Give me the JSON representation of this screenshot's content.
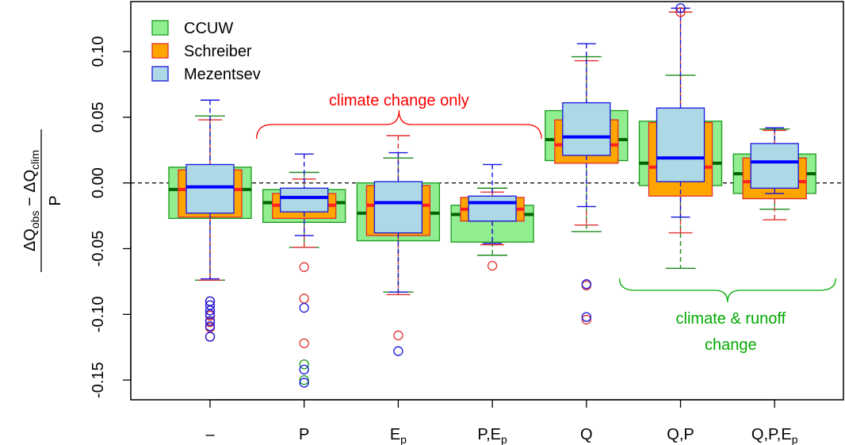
{
  "chart_data": {
    "type": "box",
    "title": "",
    "xlabel": "",
    "ylabel": {
      "numerator": "ΔQobs − ΔQclim",
      "numerator_parts": [
        "Δ",
        "Q",
        "obs",
        " − Δ",
        "Q",
        "clim"
      ],
      "denominator": "P"
    },
    "ylim": [
      -0.165,
      0.138
    ],
    "yticks": [
      -0.15,
      -0.1,
      -0.05,
      0.0,
      0.05,
      0.1
    ],
    "ytick_labels": [
      "-0.15",
      "-0.10",
      "-0.05",
      "0.00",
      "0.05",
      "0.10"
    ],
    "reference_line": 0.0,
    "categories": [
      {
        "label": "–",
        "base": "–",
        "sub": ""
      },
      {
        "label": "P",
        "base": "P",
        "sub": ""
      },
      {
        "label": "Ep",
        "base": "E",
        "sub": "p"
      },
      {
        "label": "P,Ep",
        "base": "P,E",
        "sub": "p"
      },
      {
        "label": "Q",
        "base": "Q",
        "sub": ""
      },
      {
        "label": "Q,P",
        "base": "Q,P",
        "sub": ""
      },
      {
        "label": "Q,P,Ep",
        "base": "Q,P,E",
        "sub": "p"
      }
    ],
    "series": [
      {
        "name": "CCUW",
        "fill": "#90EE90",
        "border": "#1a9a1a",
        "median_color": "#006400",
        "whisker_color": "#1a8a1a",
        "boxes": [
          {
            "q1": -0.027,
            "median": -0.005,
            "q3": 0.012,
            "lo": -0.074,
            "hi": 0.051
          },
          {
            "q1": -0.03,
            "median": -0.015,
            "q3": -0.005,
            "lo": -0.049,
            "hi": 0.008
          },
          {
            "q1": -0.044,
            "median": -0.023,
            "q3": 0.0,
            "lo": -0.083,
            "hi": 0.019
          },
          {
            "q1": -0.045,
            "median": -0.024,
            "q3": -0.017,
            "lo": -0.055,
            "hi": -0.004
          },
          {
            "q1": 0.017,
            "median": 0.033,
            "q3": 0.055,
            "lo": -0.037,
            "hi": 0.096
          },
          {
            "q1": -0.002,
            "median": 0.015,
            "q3": 0.047,
            "lo": -0.065,
            "hi": 0.082
          },
          {
            "q1": -0.008,
            "median": 0.007,
            "q3": 0.022,
            "lo": -0.02,
            "hi": 0.041
          }
        ],
        "outliers": [
          [],
          [
            -0.138,
            -0.15
          ],
          [],
          [],
          [],
          [],
          []
        ]
      },
      {
        "name": "Schreiber",
        "fill": "#FFA500",
        "border": "#e03030",
        "median_color": "#ff2020",
        "whisker_color": "#e03030",
        "boxes": [
          {
            "q1": -0.026,
            "median": -0.005,
            "q3": 0.01,
            "lo": -0.074,
            "hi": 0.048
          },
          {
            "q1": -0.027,
            "median": -0.017,
            "q3": -0.008,
            "lo": -0.049,
            "hi": 0.003
          },
          {
            "q1": -0.04,
            "median": -0.017,
            "q3": -0.002,
            "lo": -0.085,
            "hi": 0.036
          },
          {
            "q1": -0.029,
            "median": -0.02,
            "q3": -0.011,
            "lo": -0.047,
            "hi": -0.007
          },
          {
            "q1": 0.015,
            "median": 0.029,
            "q3": 0.048,
            "lo": -0.032,
            "hi": 0.093
          },
          {
            "q1": -0.01,
            "median": 0.012,
            "q3": 0.046,
            "lo": -0.038,
            "hi": 0.13
          },
          {
            "q1": -0.012,
            "median": 0.001,
            "q3": 0.019,
            "lo": -0.028,
            "hi": 0.04
          }
        ],
        "outliers": [
          [
            -0.09,
            -0.093,
            -0.097,
            -0.101,
            -0.106,
            -0.11,
            -0.117
          ],
          [
            -0.064,
            -0.088,
            -0.122
          ],
          [
            -0.116
          ],
          [
            -0.063
          ],
          [
            -0.078,
            -0.104
          ],
          [
            0.13
          ],
          []
        ]
      },
      {
        "name": "Mezentsev",
        "fill": "#ADD8E6",
        "border": "#1515e0",
        "median_color": "#0000ff",
        "whisker_color": "#1515e0",
        "boxes": [
          {
            "q1": -0.023,
            "median": -0.003,
            "q3": 0.014,
            "lo": -0.073,
            "hi": 0.063
          },
          {
            "q1": -0.022,
            "median": -0.011,
            "q3": -0.004,
            "lo": -0.04,
            "hi": 0.022
          },
          {
            "q1": -0.038,
            "median": -0.015,
            "q3": 0.001,
            "lo": -0.083,
            "hi": 0.023
          },
          {
            "q1": -0.029,
            "median": -0.015,
            "q3": -0.01,
            "lo": -0.046,
            "hi": 0.014
          },
          {
            "q1": 0.021,
            "median": 0.035,
            "q3": 0.061,
            "lo": -0.018,
            "hi": 0.106
          },
          {
            "q1": 0.001,
            "median": 0.019,
            "q3": 0.057,
            "lo": -0.026,
            "hi": 0.133
          },
          {
            "q1": -0.004,
            "median": 0.016,
            "q3": 0.03,
            "lo": -0.008,
            "hi": 0.042
          }
        ],
        "outliers": [
          [
            -0.09,
            -0.093,
            -0.097,
            -0.1,
            -0.105,
            -0.109,
            -0.117
          ],
          [
            -0.095,
            -0.142,
            -0.152
          ],
          [
            -0.128
          ],
          [],
          [
            -0.077,
            -0.102
          ],
          [
            0.133
          ],
          []
        ]
      }
    ],
    "legend": {
      "position": "top-left",
      "entries": [
        "CCUW",
        "Schreiber",
        "Mezentsev"
      ]
    },
    "annotations": [
      {
        "text": "climate change only",
        "color": "#ff0000",
        "brace_from": 1,
        "brace_to": 3
      },
      {
        "text_lines": [
          "climate & runoff",
          "change"
        ],
        "color": "#00aa00",
        "brace_from": 5,
        "brace_to": 6
      }
    ]
  }
}
